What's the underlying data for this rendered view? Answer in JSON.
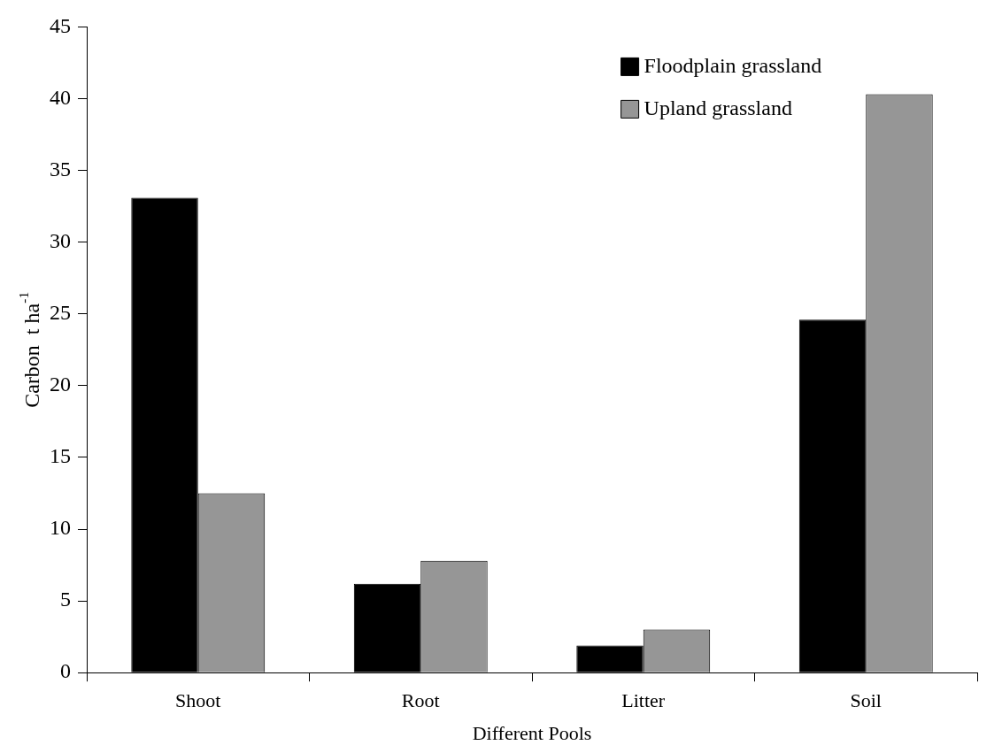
{
  "chart_data": {
    "type": "bar",
    "xlabel": "Different Pools",
    "ylabel": "Carbon  t ha$^{-1}$",
    "categories": [
      "Shoot",
      "Root",
      "Litter",
      "Soil"
    ],
    "series": [
      {
        "name": "Floodplain grassland",
        "color": "#000000",
        "values": [
          33.1,
          6.2,
          1.9,
          24.6
        ]
      },
      {
        "name": "Upland grassland",
        "color": "#969696",
        "values": [
          12.5,
          7.8,
          3.0,
          40.3
        ]
      }
    ],
    "ylim": [
      0,
      45
    ],
    "yticks": [
      0,
      5,
      10,
      15,
      20,
      25,
      30,
      35,
      40,
      45
    ],
    "grid": false,
    "legend": "top right"
  }
}
